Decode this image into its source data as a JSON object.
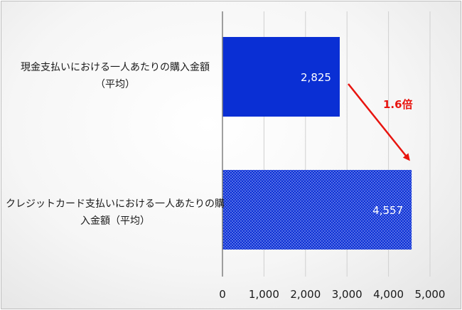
{
  "chart_data": {
    "type": "bar",
    "orientation": "horizontal",
    "categories": [
      [
        "現金支払いにおける一人あたりの購入金額",
        "（平均）"
      ],
      [
        "クレジットカード支払いにおける一人あたりの購",
        "入金額（平均）"
      ]
    ],
    "values": [
      2825,
      4557
    ],
    "data_labels": [
      "2,825",
      "4,557"
    ],
    "bar_styles": [
      "solid",
      "dotted"
    ],
    "xlim": [
      0,
      5000
    ],
    "x_ticks": [
      0,
      1000,
      2000,
      3000,
      4000,
      5000
    ],
    "x_tick_labels": [
      "0",
      "1,000",
      "2,000",
      "3,000",
      "4,000",
      "5,000"
    ],
    "grid": "vertical",
    "annotation": {
      "text": "1.6倍",
      "arrow": "from first bar to second bar"
    },
    "title": "",
    "xlabel": "",
    "ylabel": ""
  },
  "colors": {
    "bar": "#0a2fd4",
    "annotation": "#e8140f",
    "grid": "#d0d0d0",
    "axis": "#808080"
  }
}
